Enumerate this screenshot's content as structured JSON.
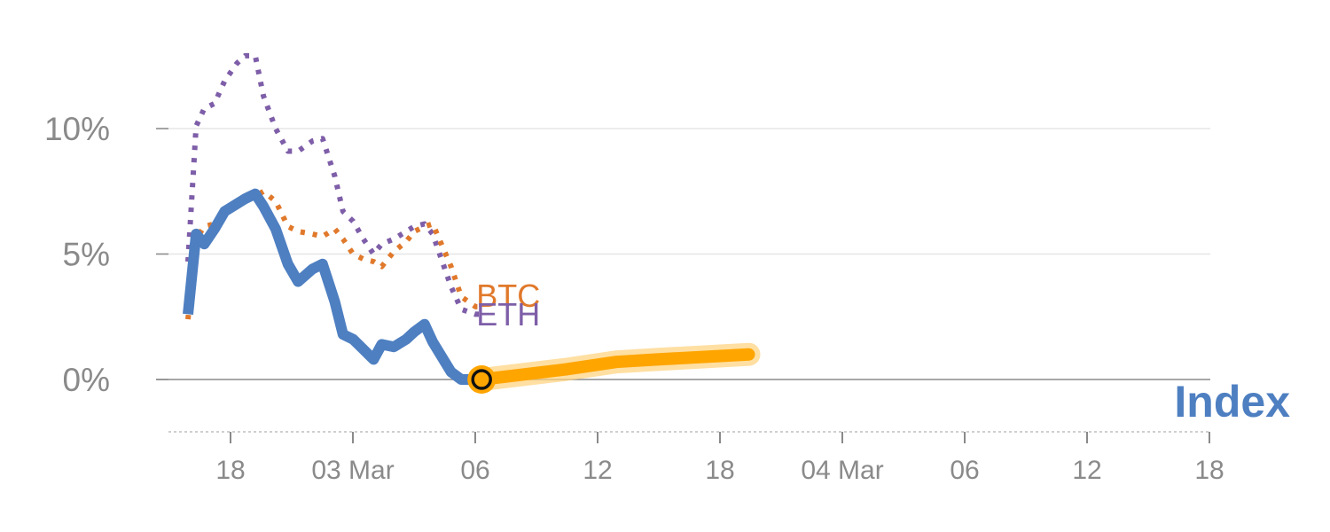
{
  "chart_data": {
    "type": "line",
    "title": "",
    "xlabel": "",
    "ylabel": "",
    "ylim": [
      -2,
      14
    ],
    "y_ticks": [
      {
        "value": 0,
        "label": "0%"
      },
      {
        "value": 5,
        "label": "5%"
      },
      {
        "value": 10,
        "label": "10%"
      }
    ],
    "x_ticks": [
      "18",
      "03 Mar",
      "06",
      "12",
      "18",
      "04 Mar",
      "06",
      "12",
      "18"
    ],
    "grid": "horizontal",
    "series": [
      {
        "name": "ETH",
        "style": "dotted",
        "color": "#7e5ea8",
        "x": [
          -2,
          -1.6,
          -1.2,
          -0.7,
          -0.2,
          0.4,
          0.8,
          1.3,
          1.7,
          2.3,
          2.9,
          3.4,
          4.1,
          4.6,
          5.2,
          5.6,
          6.1,
          6.6,
          7.1,
          7.5,
          8.1,
          8.7,
          9.1,
          9.6,
          10.0,
          10.9,
          11.4,
          12.1,
          12.4
        ],
        "values": [
          4.7,
          10.1,
          10.8,
          11.0,
          11.9,
          12.6,
          12.9,
          12.9,
          11.3,
          10.0,
          9.1,
          9.1,
          9.5,
          9.6,
          8.1,
          6.7,
          6.3,
          5.6,
          5.0,
          5.4,
          5.6,
          5.9,
          6.1,
          6.2,
          5.8,
          3.7,
          2.8,
          2.6,
          2.6
        ]
      },
      {
        "name": "BTC",
        "style": "dotted",
        "color": "#e0792b",
        "x": [
          -2,
          -1.6,
          -1.2,
          -0.7,
          -0.2,
          0.4,
          0.8,
          1.3,
          1.7,
          2.3,
          2.9,
          3.4,
          4.1,
          4.6,
          5.2,
          5.6,
          6.1,
          6.6,
          7.1,
          7.5,
          8.1,
          8.7,
          9.1,
          9.6,
          10.0,
          10.9,
          11.4,
          12.1,
          12.4
        ],
        "values": [
          2.4,
          5.6,
          6.1,
          6.2,
          6.6,
          7.0,
          7.2,
          7.3,
          7.5,
          7.1,
          6.1,
          5.9,
          5.8,
          5.7,
          6.0,
          5.6,
          5.0,
          4.8,
          4.7,
          4.5,
          5.1,
          5.5,
          5.9,
          6.1,
          6.2,
          4.5,
          3.3,
          2.9,
          2.9
        ]
      },
      {
        "name": "Index",
        "style": "solid",
        "color": "#4e7fc1",
        "x": [
          -2,
          -1.6,
          -1.2,
          -0.7,
          -0.2,
          0.4,
          0.8,
          1.3,
          1.7,
          2.3,
          2.9,
          3.4,
          4.1,
          4.6,
          5.2,
          5.6,
          6.1,
          6.6,
          7.1,
          7.5,
          8.1,
          8.7,
          9.1,
          9.6,
          10.0,
          10.9,
          11.4,
          12.1,
          12.4
        ],
        "values": [
          2.6,
          5.8,
          5.4,
          6.0,
          6.7,
          7.0,
          7.2,
          7.4,
          6.9,
          6.0,
          4.6,
          3.9,
          4.4,
          4.6,
          3.1,
          1.8,
          1.6,
          1.2,
          0.8,
          1.4,
          1.3,
          1.6,
          1.9,
          2.2,
          1.5,
          0.3,
          0.0,
          0.0,
          0.0
        ]
      },
      {
        "name": "",
        "style": "projection",
        "color": "#ffa500",
        "x": [
          12.4,
          16.5,
          19.0,
          21.0,
          25.5
        ],
        "values": [
          0.0,
          0.4,
          0.7,
          0.8,
          1.0
        ]
      }
    ],
    "marker": {
      "x": 12.4,
      "value": 0.0,
      "color": "#ffa500"
    },
    "labels": {
      "btc": "BTC",
      "eth": "ETH",
      "index": "Index"
    }
  }
}
